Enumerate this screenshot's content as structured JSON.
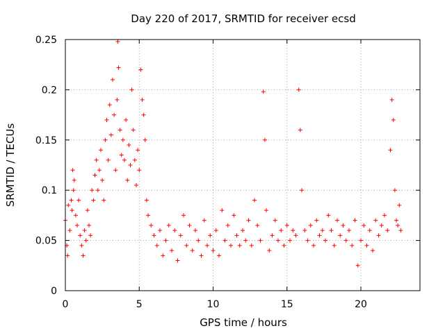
{
  "chart_data": {
    "type": "scatter",
    "title": "Day 220 of 2017, SRMTID for receiver ecsd",
    "xlabel": "GPS time / hours",
    "ylabel": "SRMTID / TECUs",
    "xlim": [
      0,
      24
    ],
    "ylim": [
      0,
      0.25
    ],
    "x_ticks": [
      0,
      5,
      10,
      15,
      20
    ],
    "x_tick_labels": [
      "0",
      "5",
      "10",
      "15",
      "20"
    ],
    "y_ticks": [
      0,
      0.05,
      0.1,
      0.15,
      0.2,
      0.25
    ],
    "y_tick_labels": [
      "0",
      "0.05",
      "0.1",
      "0.15",
      "0.2",
      "0.25"
    ],
    "grid": true,
    "marker": "+",
    "series": [
      {
        "name": "SRMTID",
        "color": "#ff0000",
        "points": [
          [
            0.0,
            0.07
          ],
          [
            0.1,
            0.045
          ],
          [
            0.15,
            0.035
          ],
          [
            0.2,
            0.085
          ],
          [
            0.3,
            0.06
          ],
          [
            0.4,
            0.09
          ],
          [
            0.45,
            0.08
          ],
          [
            0.5,
            0.12
          ],
          [
            0.55,
            0.1
          ],
          [
            0.6,
            0.11
          ],
          [
            0.7,
            0.075
          ],
          [
            0.8,
            0.065
          ],
          [
            0.9,
            0.09
          ],
          [
            1.0,
            0.055
          ],
          [
            1.1,
            0.045
          ],
          [
            1.2,
            0.035
          ],
          [
            1.3,
            0.06
          ],
          [
            1.4,
            0.05
          ],
          [
            1.5,
            0.08
          ],
          [
            1.6,
            0.065
          ],
          [
            1.7,
            0.055
          ],
          [
            1.8,
            0.1
          ],
          [
            1.9,
            0.09
          ],
          [
            2.0,
            0.115
          ],
          [
            2.1,
            0.13
          ],
          [
            2.2,
            0.1
          ],
          [
            2.3,
            0.12
          ],
          [
            2.4,
            0.14
          ],
          [
            2.5,
            0.11
          ],
          [
            2.6,
            0.09
          ],
          [
            2.7,
            0.15
          ],
          [
            2.8,
            0.17
          ],
          [
            2.9,
            0.13
          ],
          [
            3.0,
            0.185
          ],
          [
            3.1,
            0.155
          ],
          [
            3.2,
            0.21
          ],
          [
            3.3,
            0.175
          ],
          [
            3.4,
            0.12
          ],
          [
            3.5,
            0.19
          ],
          [
            3.55,
            0.248
          ],
          [
            3.6,
            0.222
          ],
          [
            3.7,
            0.16
          ],
          [
            3.8,
            0.135
          ],
          [
            3.9,
            0.15
          ],
          [
            4.0,
            0.13
          ],
          [
            4.1,
            0.17
          ],
          [
            4.2,
            0.11
          ],
          [
            4.3,
            0.145
          ],
          [
            4.4,
            0.125
          ],
          [
            4.5,
            0.2
          ],
          [
            4.6,
            0.16
          ],
          [
            4.7,
            0.13
          ],
          [
            4.8,
            0.105
          ],
          [
            4.9,
            0.14
          ],
          [
            5.0,
            0.12
          ],
          [
            5.1,
            0.22
          ],
          [
            5.2,
            0.19
          ],
          [
            5.3,
            0.175
          ],
          [
            5.4,
            0.15
          ],
          [
            5.5,
            0.09
          ],
          [
            5.6,
            0.075
          ],
          [
            5.8,
            0.065
          ],
          [
            6.0,
            0.055
          ],
          [
            6.2,
            0.045
          ],
          [
            6.4,
            0.06
          ],
          [
            6.6,
            0.035
          ],
          [
            6.8,
            0.05
          ],
          [
            7.0,
            0.065
          ],
          [
            7.2,
            0.04
          ],
          [
            7.4,
            0.06
          ],
          [
            7.6,
            0.03
          ],
          [
            7.8,
            0.055
          ],
          [
            8.0,
            0.075
          ],
          [
            8.2,
            0.045
          ],
          [
            8.4,
            0.065
          ],
          [
            8.6,
            0.04
          ],
          [
            8.8,
            0.06
          ],
          [
            9.0,
            0.05
          ],
          [
            9.2,
            0.035
          ],
          [
            9.4,
            0.07
          ],
          [
            9.6,
            0.045
          ],
          [
            9.8,
            0.055
          ],
          [
            10.0,
            0.04
          ],
          [
            10.2,
            0.06
          ],
          [
            10.4,
            0.035
          ],
          [
            10.6,
            0.08
          ],
          [
            10.8,
            0.05
          ],
          [
            11.0,
            0.065
          ],
          [
            11.2,
            0.045
          ],
          [
            11.4,
            0.075
          ],
          [
            11.6,
            0.055
          ],
          [
            11.8,
            0.045
          ],
          [
            12.0,
            0.06
          ],
          [
            12.2,
            0.05
          ],
          [
            12.4,
            0.07
          ],
          [
            12.6,
            0.045
          ],
          [
            12.8,
            0.09
          ],
          [
            13.0,
            0.065
          ],
          [
            13.2,
            0.05
          ],
          [
            13.4,
            0.198
          ],
          [
            13.5,
            0.15
          ],
          [
            13.6,
            0.08
          ],
          [
            13.8,
            0.04
          ],
          [
            14.0,
            0.055
          ],
          [
            14.2,
            0.07
          ],
          [
            14.4,
            0.05
          ],
          [
            14.6,
            0.06
          ],
          [
            14.8,
            0.045
          ],
          [
            15.0,
            0.065
          ],
          [
            15.2,
            0.05
          ],
          [
            15.4,
            0.06
          ],
          [
            15.6,
            0.055
          ],
          [
            15.8,
            0.2
          ],
          [
            15.9,
            0.16
          ],
          [
            16.0,
            0.1
          ],
          [
            16.2,
            0.06
          ],
          [
            16.4,
            0.05
          ],
          [
            16.6,
            0.065
          ],
          [
            16.8,
            0.045
          ],
          [
            17.0,
            0.07
          ],
          [
            17.2,
            0.055
          ],
          [
            17.4,
            0.06
          ],
          [
            17.6,
            0.05
          ],
          [
            17.8,
            0.075
          ],
          [
            18.0,
            0.06
          ],
          [
            18.2,
            0.045
          ],
          [
            18.4,
            0.07
          ],
          [
            18.6,
            0.055
          ],
          [
            18.8,
            0.065
          ],
          [
            19.0,
            0.05
          ],
          [
            19.2,
            0.06
          ],
          [
            19.4,
            0.045
          ],
          [
            19.6,
            0.07
          ],
          [
            19.8,
            0.025
          ],
          [
            20.0,
            0.05
          ],
          [
            20.2,
            0.065
          ],
          [
            20.4,
            0.045
          ],
          [
            20.6,
            0.06
          ],
          [
            20.8,
            0.04
          ],
          [
            21.0,
            0.07
          ],
          [
            21.2,
            0.055
          ],
          [
            21.4,
            0.065
          ],
          [
            21.6,
            0.075
          ],
          [
            21.8,
            0.06
          ],
          [
            22.0,
            0.14
          ],
          [
            22.1,
            0.19
          ],
          [
            22.2,
            0.17
          ],
          [
            22.3,
            0.1
          ],
          [
            22.4,
            0.07
          ],
          [
            22.5,
            0.065
          ],
          [
            22.6,
            0.085
          ],
          [
            22.7,
            0.06
          ]
        ]
      }
    ]
  }
}
